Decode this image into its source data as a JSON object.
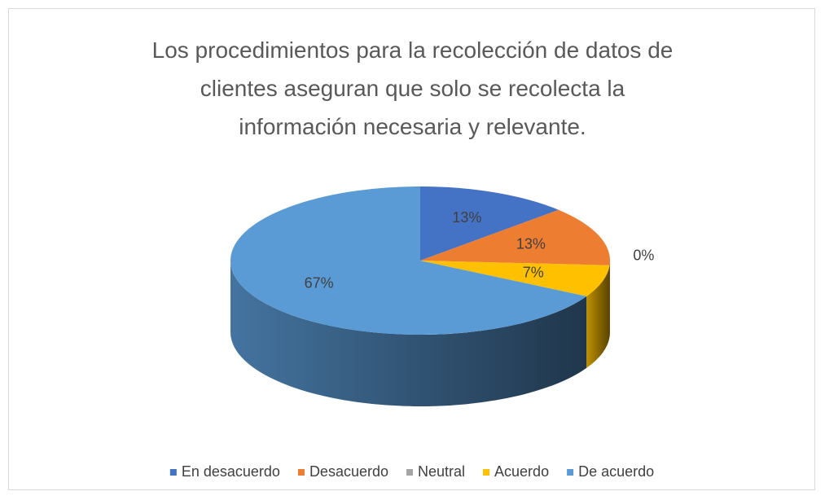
{
  "chart_data": {
    "type": "pie",
    "title": "Los procedimientos para la recolección de datos de\nclientes aseguran que solo se recolecta la\ninformación necesaria y relevante.",
    "categories": [
      "En desacuerdo",
      "Desacuerdo",
      "Neutral",
      "Acuerdo",
      "De acuerdo"
    ],
    "values": [
      13,
      13,
      0,
      7,
      67
    ],
    "value_labels": [
      "13%",
      "13%",
      "0%",
      "7%",
      "67%"
    ],
    "colors": [
      "#4472c4",
      "#ed7d31",
      "#a5a5a5",
      "#ffc000",
      "#5b9bd5"
    ],
    "legend": "bottom"
  }
}
